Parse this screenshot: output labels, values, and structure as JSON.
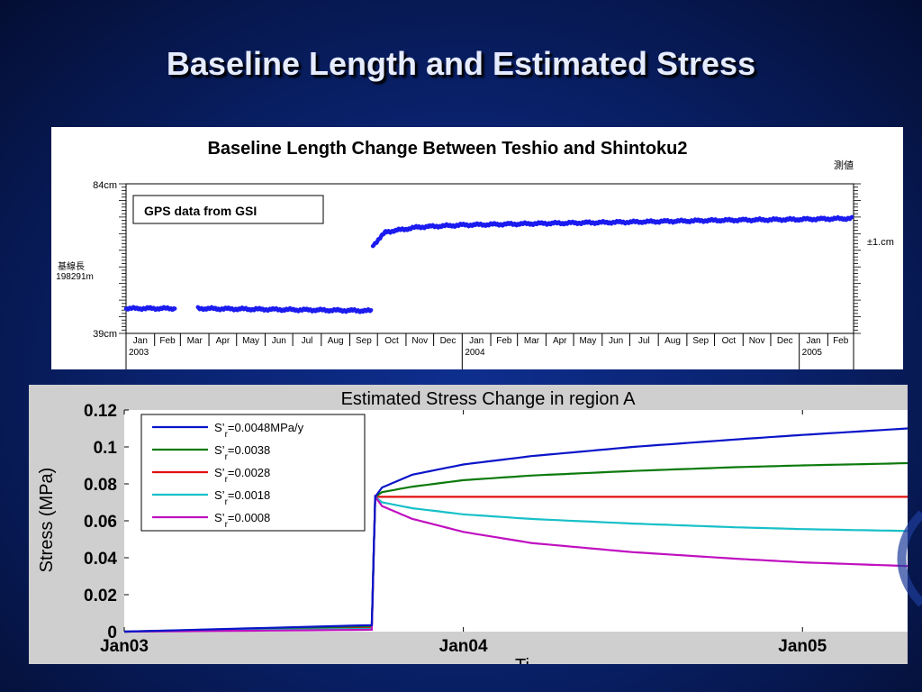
{
  "slide": {
    "title": "Baseline Length and Estimated Stress"
  },
  "top_chart": {
    "title": "Baseline Length Change Between Teshio and Shintoku2",
    "note_label": "GPS data from GSI",
    "y_top_label": "84cm",
    "y_bottom_label": "39cm",
    "y_mid_label_1": "基線長",
    "y_mid_label_2": "198291m",
    "right_top_label": "測値",
    "right_mid_label": "±1.cm",
    "color": "#1b1bf0"
  },
  "bottom_chart": {
    "title": "Estimated Stress Change in region A",
    "ylabel": "Stress (MPa)",
    "xlabel_partial": "Ti"
  },
  "chart_data": [
    {
      "type": "scatter",
      "title": "Baseline Length Change Between Teshio and Shintoku2",
      "ylabel_ticks": [
        "84cm",
        "39cm"
      ],
      "ylim": [
        39,
        84
      ],
      "x_month_labels": [
        "Jan",
        "Feb",
        "Mar",
        "Apr",
        "May",
        "Jun",
        "Jul",
        "Aug",
        "Sep",
        "Oct",
        "Nov",
        "Dec",
        "Jan",
        "Feb",
        "Mar",
        "Apr",
        "May",
        "Jun",
        "Jul",
        "Aug",
        "Sep",
        "Oct",
        "Nov",
        "Dec",
        "Jan",
        "Feb"
      ],
      "x_year_labels": [
        "2003",
        "2004",
        "2005"
      ],
      "segments": [
        {
          "x": [
            "2003-01-01",
            "2003-02-24"
          ],
          "y": [
            46.5,
            46.5
          ]
        },
        {
          "x": [
            "2003-03-20",
            "2003-09-25"
          ],
          "y": [
            46.5,
            45.8
          ]
        },
        {
          "x": [
            "2003-09-26",
            "2003-10-10",
            "2003-11-15",
            "2004-01-01",
            "2004-04-01",
            "2004-07-01",
            "2004-10-01",
            "2005-01-01",
            "2005-02-28"
          ],
          "y": [
            65.5,
            69.5,
            71.0,
            71.6,
            72.1,
            72.5,
            73.0,
            73.3,
            73.6
          ]
        }
      ],
      "annotation": "GPS data from GSI"
    },
    {
      "type": "line",
      "title": "Estimated Stress Change in region A",
      "ylabel": "Stress (MPa)",
      "xlabel": "Ti",
      "ylim": [
        0,
        0.12
      ],
      "yticks": [
        0,
        0.02,
        0.04,
        0.06,
        0.08,
        0.1,
        0.12
      ],
      "ytick_labels": [
        "0",
        "0.02",
        "0.04",
        "0.06",
        "0.08",
        "0.1",
        "0.12"
      ],
      "xlim": [
        2003.0,
        2005.31
      ],
      "xticks": [
        2003.0,
        2004.0,
        2005.0
      ],
      "xtick_labels": [
        "Jan03",
        "Jan04",
        "Jan05"
      ],
      "legend_position": "top-left",
      "series": [
        {
          "name": "S'r=0.0048MPa/y",
          "legend_main": "S’",
          "legend_sub": "r",
          "legend_rest": "=0.0048MPa/y",
          "color": "#0a14c8",
          "x": [
            2003.0,
            2003.73,
            2003.74,
            2003.76,
            2003.85,
            2004.0,
            2004.2,
            2004.5,
            2004.8,
            2005.0,
            2005.31
          ],
          "y": [
            0,
            0.0035,
            0.073,
            0.078,
            0.085,
            0.0905,
            0.095,
            0.1,
            0.104,
            0.1065,
            0.11
          ]
        },
        {
          "name": "S'r=0.0038",
          "legend_main": "S’",
          "legend_sub": "r",
          "legend_rest": "=0.0038",
          "color": "#0c7a0c",
          "x": [
            2003.0,
            2003.73,
            2003.74,
            2003.76,
            2003.85,
            2004.0,
            2004.2,
            2004.5,
            2004.8,
            2005.0,
            2005.31
          ],
          "y": [
            0,
            0.003,
            0.073,
            0.0755,
            0.0785,
            0.082,
            0.0845,
            0.087,
            0.089,
            0.09,
            0.0912
          ]
        },
        {
          "name": "S'r=0.0028",
          "legend_main": "S’",
          "legend_sub": "r",
          "legend_rest": "=0.0028",
          "color": "#e01010",
          "x": [
            2003.0,
            2003.73,
            2003.74,
            2005.31
          ],
          "y": [
            0,
            0.002,
            0.073,
            0.073
          ]
        },
        {
          "name": "S'r=0.0018",
          "legend_main": "S’",
          "legend_sub": "r",
          "legend_rest": "=0.0018",
          "color": "#18c0c8",
          "x": [
            2003.0,
            2003.73,
            2003.74,
            2003.76,
            2003.85,
            2004.0,
            2004.2,
            2004.5,
            2004.8,
            2005.0,
            2005.31
          ],
          "y": [
            0,
            0.0015,
            0.073,
            0.07,
            0.0668,
            0.0635,
            0.061,
            0.0585,
            0.0565,
            0.0555,
            0.0545
          ]
        },
        {
          "name": "S'r=0.0008",
          "legend_main": "S’",
          "legend_sub": "r",
          "legend_rest": "=0.0008",
          "color": "#c010c0",
          "x": [
            2003.0,
            2003.73,
            2003.74,
            2003.76,
            2003.85,
            2004.0,
            2004.2,
            2004.5,
            2004.8,
            2005.0,
            2005.31
          ],
          "y": [
            0,
            0.001,
            0.073,
            0.068,
            0.061,
            0.054,
            0.048,
            0.043,
            0.0395,
            0.0375,
            0.0355
          ]
        }
      ]
    }
  ]
}
